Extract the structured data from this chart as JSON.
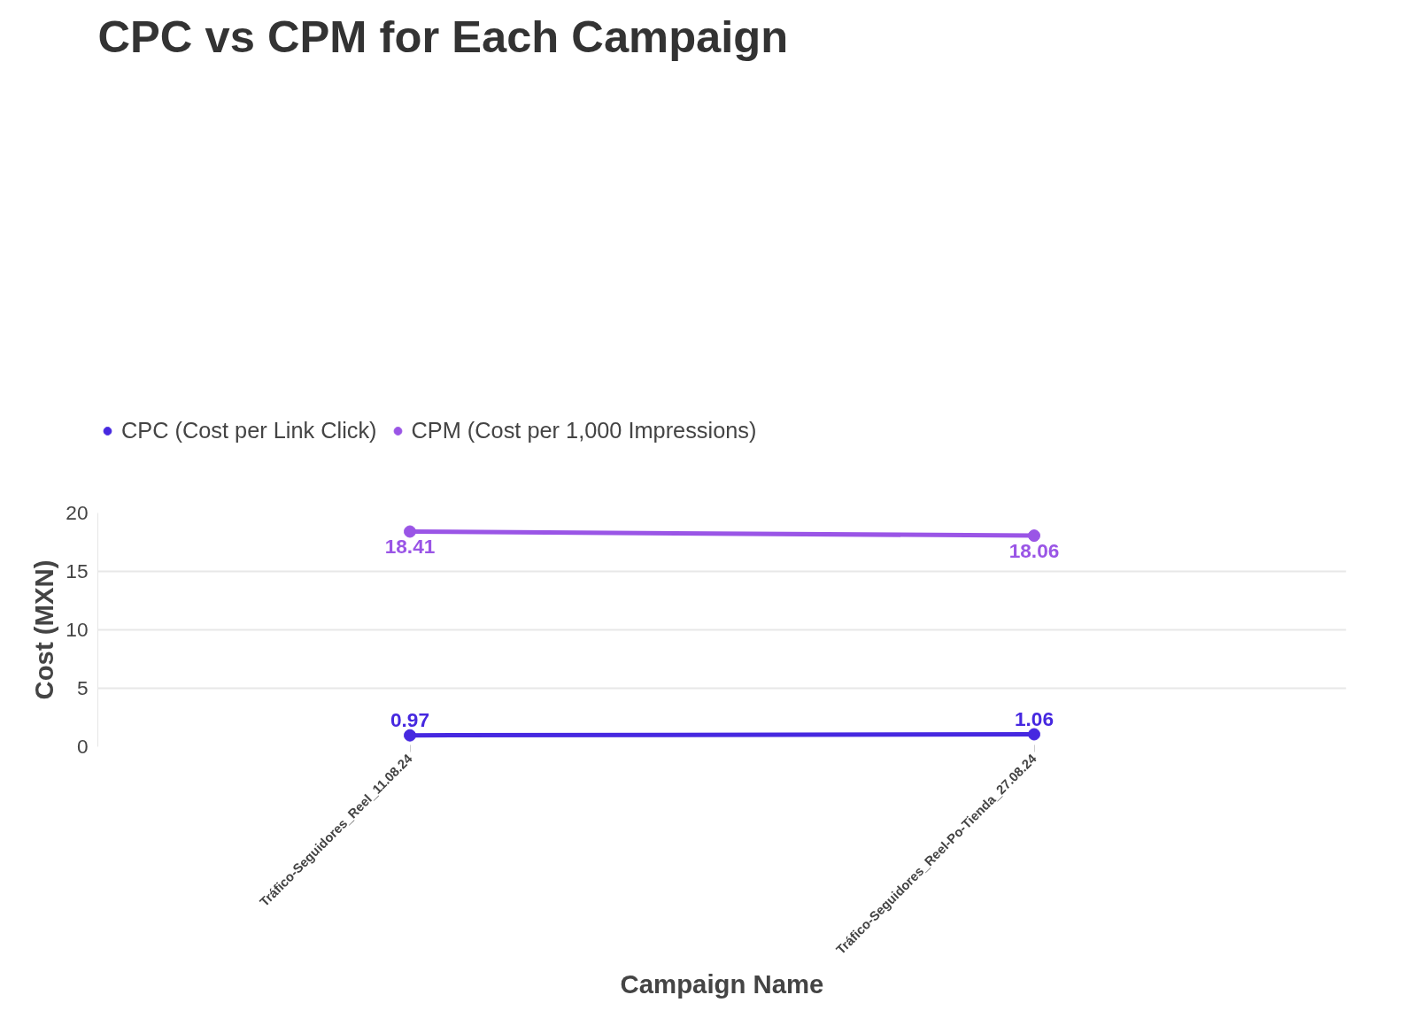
{
  "chart_data": {
    "type": "line",
    "title": "CPC vs CPM for Each Campaign",
    "xlabel": "Campaign Name",
    "ylabel": "Cost (MXN)",
    "categories": [
      "Tráfico-Seguidores_Reel_11.08.24",
      "Tráfico-Seguidores_Reel-Po-Tienda_27.08.24"
    ],
    "series": [
      {
        "name": "CPC (Cost per Link Click)",
        "color": "#4628e0",
        "values": [
          0.97,
          1.06
        ]
      },
      {
        "name": "CPM (Cost per 1,000 Impressions)",
        "color": "#9a55e6",
        "values": [
          18.41,
          18.06
        ]
      }
    ],
    "ylim": [
      0,
      20
    ],
    "yticks": [
      0,
      5,
      10,
      15,
      20
    ],
    "grid": "y",
    "legend": "top left",
    "marker": "circle",
    "line_style": "solid",
    "data_labels": true
  }
}
